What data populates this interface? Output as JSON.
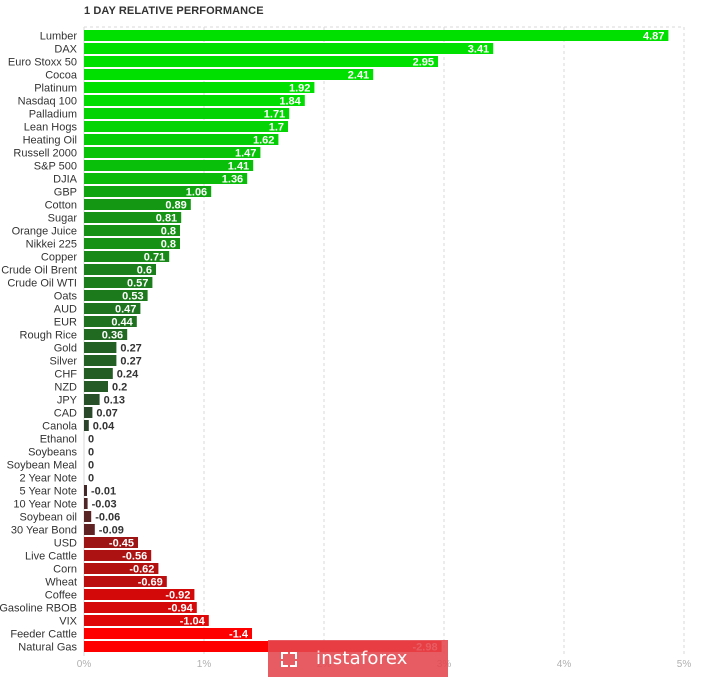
{
  "chart_data": {
    "type": "bar",
    "orientation": "horizontal",
    "title": "1 DAY RELATIVE PERFORMANCE",
    "categories": [
      "Lumber",
      "DAX",
      "Euro Stoxx 50",
      "Cocoa",
      "Platinum",
      "Nasdaq 100",
      "Palladium",
      "Lean Hogs",
      "Heating Oil",
      "Russell 2000",
      "S&P 500",
      "DJIA",
      "GBP",
      "Cotton",
      "Sugar",
      "Orange Juice",
      "Nikkei 225",
      "Copper",
      "Crude Oil Brent",
      "Crude Oil WTI",
      "Oats",
      "AUD",
      "EUR",
      "Rough Rice",
      "Gold",
      "Silver",
      "CHF",
      "NZD",
      "JPY",
      "CAD",
      "Canola",
      "Ethanol",
      "Soybeans",
      "Soybean Meal",
      "2 Year Note",
      "5 Year Note",
      "10 Year Note",
      "Soybean oil",
      "30 Year Bond",
      "USD",
      "Live Cattle",
      "Corn",
      "Wheat",
      "Coffee",
      "Gasoline RBOB",
      "VIX",
      "Feeder Cattle",
      "Natural Gas"
    ],
    "values": [
      4.87,
      3.41,
      2.95,
      2.41,
      1.92,
      1.84,
      1.71,
      1.7,
      1.62,
      1.47,
      1.41,
      1.36,
      1.06,
      0.89,
      0.81,
      0.8,
      0.8,
      0.71,
      0.6,
      0.57,
      0.53,
      0.47,
      0.44,
      0.36,
      0.27,
      0.27,
      0.24,
      0.2,
      0.13,
      0.07,
      0.04,
      0,
      0,
      0,
      0,
      -0.01,
      -0.03,
      -0.06,
      -0.09,
      -0.45,
      -0.56,
      -0.62,
      -0.69,
      -0.92,
      -0.94,
      -1.04,
      -1.4,
      -2.98
    ],
    "value_labels": [
      "4.87",
      "3.41",
      "2.95",
      "2.41",
      "1.92",
      "1.84",
      "1.71",
      "1.7",
      "1.62",
      "1.47",
      "1.41",
      "1.36",
      "1.06",
      "0.89",
      "0.81",
      "0.8",
      "0.8",
      "0.71",
      "0.6",
      "0.57",
      "0.53",
      "0.47",
      "0.44",
      "0.36",
      "0.27",
      "0.27",
      "0.24",
      "0.2",
      "0.13",
      "0.07",
      "0.04",
      "0",
      "0",
      "0",
      "0",
      "-0.01",
      "-0.03",
      "-0.06",
      "-0.09",
      "-0.45",
      "-0.56",
      "-0.62",
      "-0.69",
      "-0.92",
      "-0.94",
      "-1.04",
      "-1.4",
      "-2.98"
    ],
    "x_ticks": [
      "0%",
      "1%",
      "2%",
      "3%",
      "4%",
      "5%"
    ],
    "x_tick_values": [
      0,
      1,
      2,
      3,
      4,
      5
    ],
    "xlim": [
      0,
      5
    ],
    "grid": true,
    "colors": {
      "positive_bright": "#00e000",
      "positive_dark": "#2e3a2e",
      "negative_dark": "#3a2a2a",
      "negative_bright": "#ff0000",
      "grid": "#d9d9d9"
    }
  },
  "watermark": {
    "text": "instaforex",
    "logo_icon": "instaforex-logo-icon",
    "color": "#e4464d"
  }
}
